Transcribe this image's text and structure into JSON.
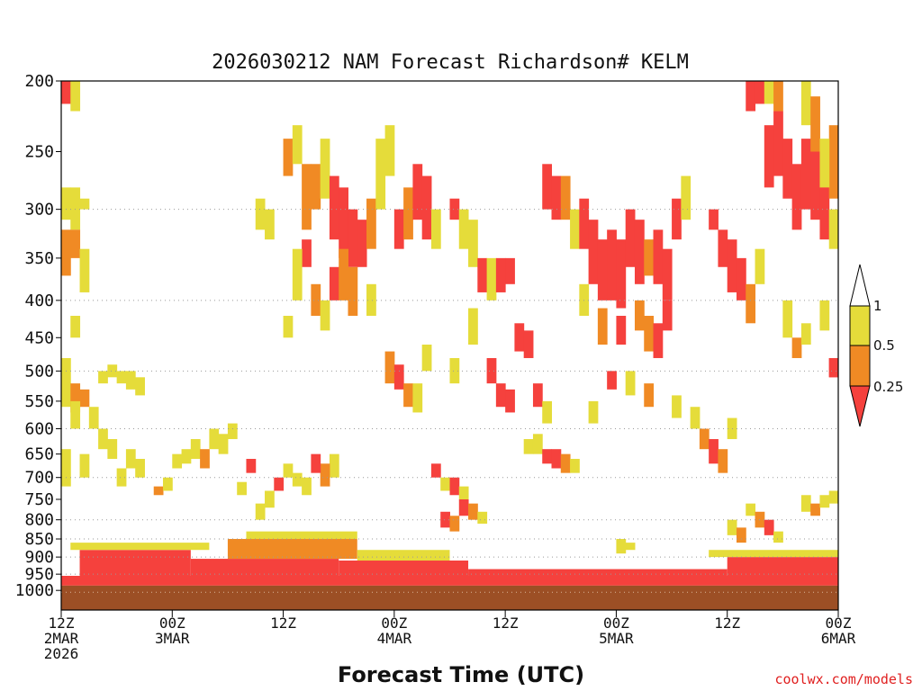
{
  "chart_data": {
    "type": "heatmap",
    "title": "2026030212 NAM Forecast Richardson# KELM",
    "xlabel": "Forecast Time (UTC)",
    "ylabel": "",
    "credit": "coolwx.com/models",
    "x_range_hours": [
      0,
      84
    ],
    "y_range_hpa": [
      200,
      1000
    ],
    "y_scale": "log-pressure",
    "x_ticks": [
      {
        "hour": 0,
        "line1": "12Z",
        "line2": "2MAR",
        "line3": "2026"
      },
      {
        "hour": 12,
        "line1": "00Z",
        "line2": "3MAR",
        "line3": ""
      },
      {
        "hour": 24,
        "line1": "12Z",
        "line2": "",
        "line3": ""
      },
      {
        "hour": 36,
        "line1": "00Z",
        "line2": "4MAR",
        "line3": ""
      },
      {
        "hour": 48,
        "line1": "12Z",
        "line2": "",
        "line3": ""
      },
      {
        "hour": 60,
        "line1": "00Z",
        "line2": "5MAR",
        "line3": ""
      },
      {
        "hour": 72,
        "line1": "12Z",
        "line2": "",
        "line3": ""
      },
      {
        "hour": 84,
        "line1": "00Z",
        "line2": "6MAR",
        "line3": ""
      }
    ],
    "y_ticks": [
      "200",
      "250",
      "300",
      "350",
      "400",
      "450",
      "500",
      "550",
      "600",
      "650",
      "700",
      "750",
      "800",
      "850",
      "900",
      "950",
      "1000"
    ],
    "gridlines_hpa": [
      300,
      400,
      500,
      600,
      700,
      800,
      850,
      900,
      950
    ],
    "legend": {
      "placement": "right",
      "labels": [
        "1",
        "0.5",
        "0.25"
      ],
      "colors": {
        "gt1": "#ffffff",
        "b05_1": "#e5dc3a",
        "b025_05": "#f08a24",
        "lt025": "#f5413d"
      }
    },
    "colors": {
      "yellow": "#e5dc3a",
      "orange": "#f08a24",
      "red": "#f5413d",
      "ground": "#9c4f25"
    },
    "cells": [
      {
        "h": 0,
        "p1": 200,
        "p2": 215,
        "v": 0.2
      },
      {
        "h": 1,
        "p1": 200,
        "p2": 220,
        "v": 0.6
      },
      {
        "h": 0,
        "p1": 280,
        "p2": 310,
        "v": 0.6
      },
      {
        "h": 1,
        "p1": 280,
        "p2": 320,
        "v": 0.6
      },
      {
        "h": 2,
        "p1": 290,
        "p2": 300,
        "v": 0.6
      },
      {
        "h": 0,
        "p1": 320,
        "p2": 370,
        "v": 0.4
      },
      {
        "h": 1,
        "p1": 320,
        "p2": 350,
        "v": 0.4
      },
      {
        "h": 2,
        "p1": 340,
        "p2": 390,
        "v": 0.6
      },
      {
        "h": 1,
        "p1": 420,
        "p2": 450,
        "v": 0.6
      },
      {
        "h": 0,
        "p1": 480,
        "p2": 560,
        "v": 0.6
      },
      {
        "h": 1,
        "p1": 520,
        "p2": 570,
        "v": 0.4
      },
      {
        "h": 2,
        "p1": 530,
        "p2": 560,
        "v": 0.4
      },
      {
        "h": 1,
        "p1": 550,
        "p2": 600,
        "v": 0.6
      },
      {
        "h": 3,
        "p1": 560,
        "p2": 600,
        "v": 0.6
      },
      {
        "h": 4,
        "p1": 500,
        "p2": 520,
        "v": 0.6
      },
      {
        "h": 5,
        "p1": 490,
        "p2": 510,
        "v": 0.6
      },
      {
        "h": 6,
        "p1": 500,
        "p2": 520,
        "v": 0.6
      },
      {
        "h": 7,
        "p1": 500,
        "p2": 530,
        "v": 0.6
      },
      {
        "h": 8,
        "p1": 510,
        "p2": 540,
        "v": 0.6
      },
      {
        "h": 0,
        "p1": 640,
        "p2": 720,
        "v": 0.6
      },
      {
        "h": 2,
        "p1": 650,
        "p2": 700,
        "v": 0.6
      },
      {
        "h": 4,
        "p1": 600,
        "p2": 640,
        "v": 0.6
      },
      {
        "h": 5,
        "p1": 620,
        "p2": 660,
        "v": 0.6
      },
      {
        "h": 6,
        "p1": 680,
        "p2": 720,
        "v": 0.6
      },
      {
        "h": 7,
        "p1": 640,
        "p2": 680,
        "v": 0.6
      },
      {
        "h": 8,
        "p1": 660,
        "p2": 700,
        "v": 0.6
      },
      {
        "h": 10,
        "p1": 720,
        "p2": 740,
        "v": 0.4
      },
      {
        "h": 11,
        "p1": 700,
        "p2": 730,
        "v": 0.6
      },
      {
        "h": 12,
        "p1": 650,
        "p2": 680,
        "v": 0.6
      },
      {
        "h": 13,
        "p1": 640,
        "p2": 670,
        "v": 0.6
      },
      {
        "h": 14,
        "p1": 620,
        "p2": 660,
        "v": 0.6
      },
      {
        "h": 15,
        "p1": 640,
        "p2": 680,
        "v": 0.4
      },
      {
        "h": 16,
        "p1": 600,
        "p2": 640,
        "v": 0.6
      },
      {
        "h": 17,
        "p1": 610,
        "p2": 650,
        "v": 0.6
      },
      {
        "h": 18,
        "p1": 590,
        "p2": 620,
        "v": 0.6
      },
      {
        "h": 21,
        "p1": 290,
        "p2": 320,
        "v": 0.6
      },
      {
        "h": 22,
        "p1": 300,
        "p2": 330,
        "v": 0.6
      },
      {
        "h": 24,
        "p1": 240,
        "p2": 270,
        "v": 0.4
      },
      {
        "h": 25,
        "p1": 230,
        "p2": 260,
        "v": 0.6
      },
      {
        "h": 26,
        "p1": 260,
        "p2": 320,
        "v": 0.4
      },
      {
        "h": 27,
        "p1": 260,
        "p2": 300,
        "v": 0.4
      },
      {
        "h": 28,
        "p1": 240,
        "p2": 290,
        "v": 0.6
      },
      {
        "h": 29,
        "p1": 270,
        "p2": 330,
        "v": 0.2
      },
      {
        "h": 30,
        "p1": 280,
        "p2": 350,
        "v": 0.2
      },
      {
        "h": 31,
        "p1": 300,
        "p2": 360,
        "v": 0.2
      },
      {
        "h": 32,
        "p1": 310,
        "p2": 360,
        "v": 0.2
      },
      {
        "h": 33,
        "p1": 290,
        "p2": 340,
        "v": 0.4
      },
      {
        "h": 34,
        "p1": 240,
        "p2": 300,
        "v": 0.6
      },
      {
        "h": 35,
        "p1": 230,
        "p2": 270,
        "v": 0.6
      },
      {
        "h": 36,
        "p1": 300,
        "p2": 340,
        "v": 0.2
      },
      {
        "h": 37,
        "p1": 280,
        "p2": 330,
        "v": 0.4
      },
      {
        "h": 38,
        "p1": 260,
        "p2": 310,
        "v": 0.2
      },
      {
        "h": 39,
        "p1": 270,
        "p2": 330,
        "v": 0.2
      },
      {
        "h": 40,
        "p1": 300,
        "p2": 340,
        "v": 0.6
      },
      {
        "h": 26,
        "p1": 330,
        "p2": 360,
        "v": 0.2
      },
      {
        "h": 25,
        "p1": 340,
        "p2": 400,
        "v": 0.6
      },
      {
        "h": 27,
        "p1": 380,
        "p2": 420,
        "v": 0.4
      },
      {
        "h": 29,
        "p1": 360,
        "p2": 400,
        "v": 0.2
      },
      {
        "h": 30,
        "p1": 340,
        "p2": 400,
        "v": 0.4
      },
      {
        "h": 31,
        "p1": 360,
        "p2": 420,
        "v": 0.4
      },
      {
        "h": 28,
        "p1": 400,
        "p2": 440,
        "v": 0.6
      },
      {
        "h": 24,
        "p1": 420,
        "p2": 450,
        "v": 0.6
      },
      {
        "h": 33,
        "p1": 380,
        "p2": 420,
        "v": 0.6
      },
      {
        "h": 35,
        "p1": 470,
        "p2": 520,
        "v": 0.4
      },
      {
        "h": 36,
        "p1": 490,
        "p2": 530,
        "v": 0.2
      },
      {
        "h": 37,
        "p1": 520,
        "p2": 560,
        "v": 0.4
      },
      {
        "h": 38,
        "p1": 520,
        "p2": 570,
        "v": 0.6
      },
      {
        "h": 39,
        "p1": 460,
        "p2": 500,
        "v": 0.6
      },
      {
        "h": 42,
        "p1": 290,
        "p2": 310,
        "v": 0.2
      },
      {
        "h": 43,
        "p1": 300,
        "p2": 340,
        "v": 0.6
      },
      {
        "h": 44,
        "p1": 310,
        "p2": 360,
        "v": 0.6
      },
      {
        "h": 45,
        "p1": 350,
        "p2": 390,
        "v": 0.2
      },
      {
        "h": 46,
        "p1": 350,
        "p2": 400,
        "v": 0.6
      },
      {
        "h": 47,
        "p1": 350,
        "p2": 390,
        "v": 0.2
      },
      {
        "h": 48,
        "p1": 350,
        "p2": 380,
        "v": 0.2
      },
      {
        "h": 44,
        "p1": 410,
        "p2": 460,
        "v": 0.6
      },
      {
        "h": 42,
        "p1": 480,
        "p2": 520,
        "v": 0.6
      },
      {
        "h": 46,
        "p1": 480,
        "p2": 520,
        "v": 0.2
      },
      {
        "h": 47,
        "p1": 520,
        "p2": 560,
        "v": 0.2
      },
      {
        "h": 48,
        "p1": 530,
        "p2": 570,
        "v": 0.2
      },
      {
        "h": 49,
        "p1": 430,
        "p2": 470,
        "v": 0.2
      },
      {
        "h": 50,
        "p1": 440,
        "p2": 480,
        "v": 0.2
      },
      {
        "h": 51,
        "p1": 520,
        "p2": 560,
        "v": 0.2
      },
      {
        "h": 52,
        "p1": 550,
        "p2": 590,
        "v": 0.6
      },
      {
        "h": 50,
        "p1": 620,
        "p2": 650,
        "v": 0.6
      },
      {
        "h": 51,
        "p1": 610,
        "p2": 650,
        "v": 0.6
      },
      {
        "h": 52,
        "p1": 640,
        "p2": 670,
        "v": 0.2
      },
      {
        "h": 53,
        "p1": 640,
        "p2": 680,
        "v": 0.2
      },
      {
        "h": 54,
        "p1": 650,
        "p2": 690,
        "v": 0.4
      },
      {
        "h": 55,
        "p1": 660,
        "p2": 690,
        "v": 0.6
      },
      {
        "h": 40,
        "p1": 670,
        "p2": 700,
        "v": 0.2
      },
      {
        "h": 41,
        "p1": 700,
        "p2": 730,
        "v": 0.6
      },
      {
        "h": 43,
        "p1": 750,
        "p2": 790,
        "v": 0.2
      },
      {
        "h": 44,
        "p1": 760,
        "p2": 800,
        "v": 0.4
      },
      {
        "h": 45,
        "p1": 780,
        "p2": 810,
        "v": 0.6
      },
      {
        "h": 42,
        "p1": 700,
        "p2": 740,
        "v": 0.2
      },
      {
        "h": 43,
        "p1": 720,
        "p2": 750,
        "v": 0.6
      },
      {
        "h": 41,
        "p1": 780,
        "p2": 820,
        "v": 0.2
      },
      {
        "h": 42,
        "p1": 790,
        "p2": 830,
        "v": 0.4
      },
      {
        "h": 52,
        "p1": 260,
        "p2": 300,
        "v": 0.2
      },
      {
        "h": 53,
        "p1": 270,
        "p2": 310,
        "v": 0.2
      },
      {
        "h": 54,
        "p1": 270,
        "p2": 310,
        "v": 0.4
      },
      {
        "h": 55,
        "p1": 300,
        "p2": 340,
        "v": 0.6
      },
      {
        "h": 56,
        "p1": 290,
        "p2": 340,
        "v": 0.2
      },
      {
        "h": 57,
        "p1": 310,
        "p2": 380,
        "v": 0.2
      },
      {
        "h": 58,
        "p1": 330,
        "p2": 400,
        "v": 0.2
      },
      {
        "h": 59,
        "p1": 320,
        "p2": 400,
        "v": 0.2
      },
      {
        "h": 60,
        "p1": 330,
        "p2": 410,
        "v": 0.2
      },
      {
        "h": 61,
        "p1": 300,
        "p2": 360,
        "v": 0.2
      },
      {
        "h": 62,
        "p1": 310,
        "p2": 380,
        "v": 0.2
      },
      {
        "h": 63,
        "p1": 330,
        "p2": 370,
        "v": 0.4
      },
      {
        "h": 64,
        "p1": 320,
        "p2": 380,
        "v": 0.2
      },
      {
        "h": 65,
        "p1": 340,
        "p2": 400,
        "v": 0.2
      },
      {
        "h": 66,
        "p1": 290,
        "p2": 330,
        "v": 0.2
      },
      {
        "h": 67,
        "p1": 270,
        "p2": 310,
        "v": 0.6
      },
      {
        "h": 56,
        "p1": 380,
        "p2": 420,
        "v": 0.6
      },
      {
        "h": 58,
        "p1": 410,
        "p2": 460,
        "v": 0.4
      },
      {
        "h": 60,
        "p1": 420,
        "p2": 460,
        "v": 0.2
      },
      {
        "h": 62,
        "p1": 400,
        "p2": 440,
        "v": 0.4
      },
      {
        "h": 63,
        "p1": 420,
        "p2": 470,
        "v": 0.4
      },
      {
        "h": 64,
        "p1": 430,
        "p2": 480,
        "v": 0.2
      },
      {
        "h": 65,
        "p1": 400,
        "p2": 440,
        "v": 0.2
      },
      {
        "h": 70,
        "p1": 300,
        "p2": 320,
        "v": 0.2
      },
      {
        "h": 71,
        "p1": 320,
        "p2": 360,
        "v": 0.2
      },
      {
        "h": 72,
        "p1": 330,
        "p2": 390,
        "v": 0.2
      },
      {
        "h": 73,
        "p1": 350,
        "p2": 400,
        "v": 0.2
      },
      {
        "h": 74,
        "p1": 380,
        "p2": 430,
        "v": 0.4
      },
      {
        "h": 75,
        "p1": 340,
        "p2": 380,
        "v": 0.6
      },
      {
        "h": 76,
        "p1": 230,
        "p2": 280,
        "v": 0.2
      },
      {
        "h": 77,
        "p1": 220,
        "p2": 270,
        "v": 0.2
      },
      {
        "h": 78,
        "p1": 240,
        "p2": 290,
        "v": 0.2
      },
      {
        "h": 79,
        "p1": 260,
        "p2": 320,
        "v": 0.2
      },
      {
        "h": 80,
        "p1": 240,
        "p2": 300,
        "v": 0.2
      },
      {
        "h": 81,
        "p1": 250,
        "p2": 310,
        "v": 0.2
      },
      {
        "h": 82,
        "p1": 260,
        "p2": 330,
        "v": 0.2
      },
      {
        "h": 83,
        "p1": 230,
        "p2": 290,
        "v": 0.4
      },
      {
        "h": 74,
        "p1": 200,
        "p2": 220,
        "v": 0.2
      },
      {
        "h": 75,
        "p1": 200,
        "p2": 215,
        "v": 0.2
      },
      {
        "h": 76,
        "p1": 200,
        "p2": 215,
        "v": 0.6
      },
      {
        "h": 77,
        "p1": 200,
        "p2": 220,
        "v": 0.4
      },
      {
        "h": 80,
        "p1": 200,
        "p2": 230,
        "v": 0.6
      },
      {
        "h": 81,
        "p1": 210,
        "p2": 250,
        "v": 0.4
      },
      {
        "h": 82,
        "p1": 240,
        "p2": 280,
        "v": 0.6
      },
      {
        "h": 83,
        "p1": 300,
        "p2": 340,
        "v": 0.6
      },
      {
        "h": 84,
        "p1": 480,
        "p2": 510,
        "v": 0.2
      },
      {
        "h": 83,
        "p1": 480,
        "p2": 510,
        "v": 0.2
      },
      {
        "h": 78,
        "p1": 400,
        "p2": 450,
        "v": 0.6
      },
      {
        "h": 79,
        "p1": 450,
        "p2": 480,
        "v": 0.4
      },
      {
        "h": 80,
        "p1": 430,
        "p2": 460,
        "v": 0.6
      },
      {
        "h": 82,
        "p1": 400,
        "p2": 440,
        "v": 0.6
      },
      {
        "h": 69,
        "p1": 600,
        "p2": 640,
        "v": 0.4
      },
      {
        "h": 70,
        "p1": 620,
        "p2": 670,
        "v": 0.2
      },
      {
        "h": 71,
        "p1": 640,
        "p2": 690,
        "v": 0.4
      },
      {
        "h": 72,
        "p1": 580,
        "p2": 620,
        "v": 0.6
      },
      {
        "h": 68,
        "p1": 560,
        "p2": 600,
        "v": 0.6
      },
      {
        "h": 66,
        "p1": 540,
        "p2": 580,
        "v": 0.6
      },
      {
        "h": 63,
        "p1": 520,
        "p2": 560,
        "v": 0.4
      },
      {
        "h": 61,
        "p1": 500,
        "p2": 540,
        "v": 0.6
      },
      {
        "h": 59,
        "p1": 500,
        "p2": 530,
        "v": 0.2
      },
      {
        "h": 57,
        "p1": 550,
        "p2": 590,
        "v": 0.6
      },
      {
        "h": 60,
        "p1": 850,
        "p2": 890,
        "v": 0.6
      },
      {
        "h": 61,
        "p1": 860,
        "p2": 880,
        "v": 0.6
      },
      {
        "h": 29,
        "p1": 650,
        "p2": 700,
        "v": 0.6
      },
      {
        "h": 28,
        "p1": 670,
        "p2": 720,
        "v": 0.4
      },
      {
        "h": 27,
        "p1": 650,
        "p2": 690,
        "v": 0.2
      },
      {
        "h": 26,
        "p1": 700,
        "p2": 740,
        "v": 0.6
      },
      {
        "h": 25,
        "p1": 690,
        "p2": 720,
        "v": 0.6
      },
      {
        "h": 23,
        "p1": 700,
        "p2": 730,
        "v": 0.2
      },
      {
        "h": 22,
        "p1": 730,
        "p2": 770,
        "v": 0.6
      },
      {
        "h": 21,
        "p1": 760,
        "p2": 800,
        "v": 0.6
      },
      {
        "h": 24,
        "p1": 670,
        "p2": 700,
        "v": 0.6
      },
      {
        "h": 20,
        "p1": 660,
        "p2": 690,
        "v": 0.2
      },
      {
        "h": 19,
        "p1": 710,
        "p2": 740,
        "v": 0.6
      },
      {
        "h": 80,
        "p1": 740,
        "p2": 780,
        "v": 0.6
      },
      {
        "h": 81,
        "p1": 760,
        "p2": 790,
        "v": 0.4
      },
      {
        "h": 82,
        "p1": 740,
        "p2": 770,
        "v": 0.6
      },
      {
        "h": 83,
        "p1": 730,
        "p2": 760,
        "v": 0.6
      },
      {
        "h": 74,
        "p1": 760,
        "p2": 790,
        "v": 0.6
      },
      {
        "h": 75,
        "p1": 780,
        "p2": 820,
        "v": 0.4
      },
      {
        "h": 76,
        "p1": 800,
        "p2": 840,
        "v": 0.2
      },
      {
        "h": 77,
        "p1": 830,
        "p2": 860,
        "v": 0.6
      },
      {
        "h": 72,
        "p1": 800,
        "p2": 840,
        "v": 0.6
      },
      {
        "h": 73,
        "p1": 820,
        "p2": 860,
        "v": 0.4
      }
    ],
    "bands": [
      {
        "h1": 0,
        "h2": 84,
        "p1": 955,
        "p2": 985,
        "v": 0.2
      },
      {
        "h1": 2,
        "h2": 14,
        "p1": 880,
        "p2": 955,
        "v": 0.2
      },
      {
        "h1": 1,
        "h2": 16,
        "p1": 860,
        "p2": 880,
        "v": 0.6
      },
      {
        "h1": 14,
        "h2": 30,
        "p1": 905,
        "p2": 955,
        "v": 0.2
      },
      {
        "h1": 18,
        "h2": 32,
        "p1": 850,
        "p2": 905,
        "v": 0.4
      },
      {
        "h1": 20,
        "h2": 32,
        "p1": 830,
        "p2": 850,
        "v": 0.6
      },
      {
        "h1": 30,
        "h2": 44,
        "p1": 910,
        "p2": 955,
        "v": 0.2
      },
      {
        "h1": 32,
        "h2": 42,
        "p1": 880,
        "p2": 910,
        "v": 0.6
      },
      {
        "h1": 44,
        "h2": 72,
        "p1": 935,
        "p2": 955,
        "v": 0.2
      },
      {
        "h1": 72,
        "h2": 84,
        "p1": 900,
        "p2": 955,
        "v": 0.2
      },
      {
        "h1": 70,
        "h2": 84,
        "p1": 880,
        "p2": 900,
        "v": 0.6
      }
    ]
  }
}
